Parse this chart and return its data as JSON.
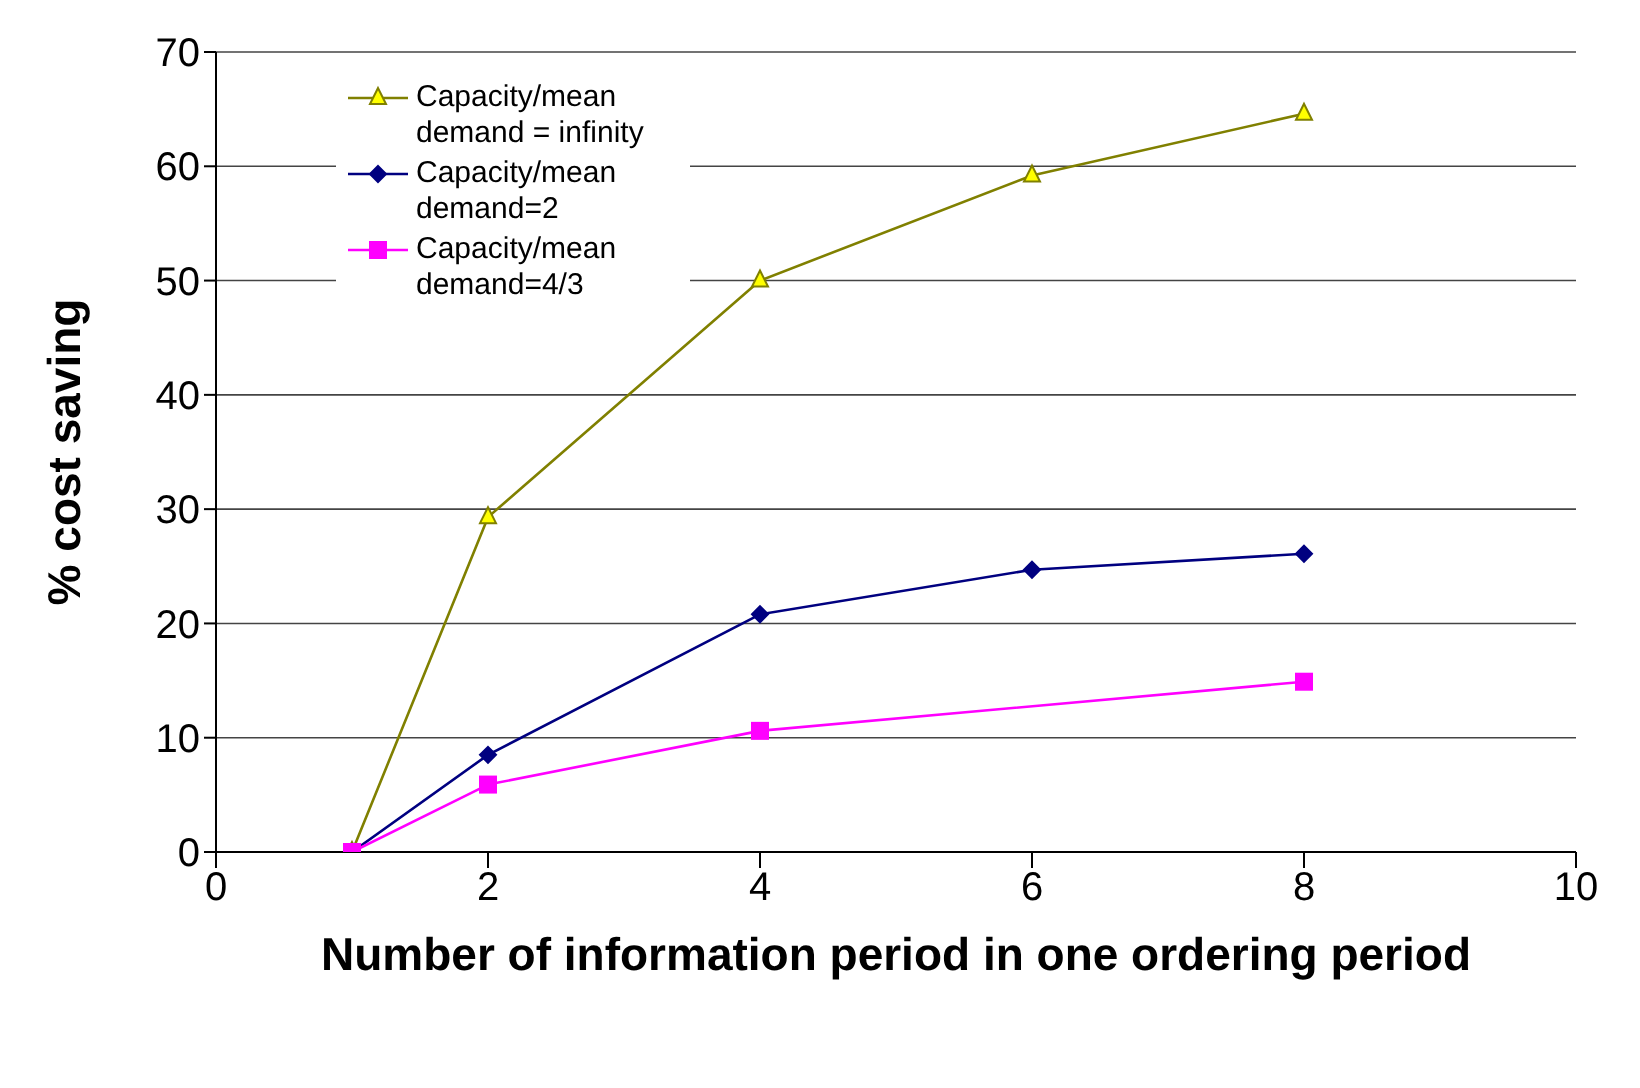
{
  "chart_data": {
    "type": "line",
    "xlabel": "Number of information period in one ordering period",
    "ylabel": "% cost saving",
    "xlim": [
      0,
      10
    ],
    "xticks": [
      0,
      2,
      4,
      6,
      8,
      10
    ],
    "ylim": [
      0,
      70
    ],
    "yticks": [
      0,
      10,
      20,
      30,
      40,
      50,
      60,
      70
    ],
    "grid": "y",
    "legend": "top left",
    "series": [
      {
        "name": "Capacity/mean demand = infinity",
        "color": "#808000",
        "marker": "triangle",
        "x": [
          1,
          2,
          4,
          6,
          8
        ],
        "values": [
          0,
          29.3,
          50,
          59.2,
          64.6
        ]
      },
      {
        "name": "Capacity/mean demand=2",
        "color": "#000080",
        "marker": "diamond",
        "x": [
          1,
          2,
          4,
          6,
          8
        ],
        "values": [
          0,
          8.5,
          20.8,
          24.7,
          26.1
        ]
      },
      {
        "name": "Capacity/mean demand=4/3",
        "color": "#ff00ff",
        "marker": "square",
        "x": [
          1,
          2,
          4,
          8
        ],
        "values": [
          0,
          5.9,
          10.6,
          14.9
        ]
      }
    ]
  }
}
